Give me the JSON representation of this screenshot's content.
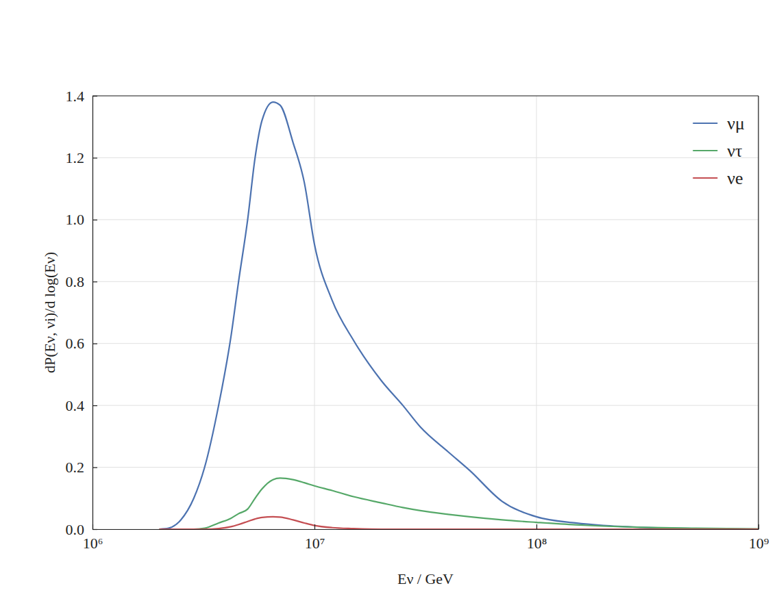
{
  "chart_data": {
    "type": "line",
    "x_label": "Eν / GeV",
    "y_label": "dP(Eν, νi)/d log(Eν)",
    "log": "x",
    "grid": true,
    "legend": "top-right",
    "xlim": [
      1000000,
      1000000000
    ],
    "xticks": [
      {
        "value": 1000000,
        "label": "10⁶"
      },
      {
        "value": 10000000,
        "label": "10⁷"
      },
      {
        "value": 100000000,
        "label": "10⁸"
      },
      {
        "value": 1000000000,
        "label": "10⁹"
      }
    ],
    "ylim": [
      0,
      1.4
    ],
    "yticks": [
      {
        "value": 0,
        "label": "0.0"
      },
      0.2,
      0.4,
      0.6,
      0.8,
      {
        "value": 1,
        "label": "1.0"
      },
      1.2,
      1.4
    ],
    "x": [
      2000000,
      2200000,
      2500000,
      2860000,
      3200000,
      3700000,
      4200000,
      4550000,
      5000000,
      5400000,
      5800000,
      6500000,
      7000000,
      8000000,
      9000000,
      10000000,
      12000000,
      15000000,
      20000000,
      25000000,
      30000000,
      40000000,
      50000000,
      70000000,
      100000000,
      150000000,
      200000000,
      300000000,
      500000000,
      1000000000
    ],
    "series": [
      {
        "name": "νμ",
        "color": "#4c72b0",
        "values": [
          0,
          0.003,
          0.03,
          0.1,
          0.2,
          0.4,
          0.62,
          0.8,
          1.0,
          1.2,
          1.32,
          1.38,
          1.37,
          1.25,
          1.12,
          0.92,
          0.74,
          0.61,
          0.48,
          0.4,
          0.33,
          0.25,
          0.19,
          0.09,
          0.04,
          0.02,
          0.012,
          0.006,
          0.002,
          0
        ]
      },
      {
        "name": "ντ",
        "color": "#55a868",
        "values": [
          0,
          0,
          0,
          0,
          0.003,
          0.02,
          0.035,
          0.05,
          0.065,
          0.1,
          0.13,
          0.16,
          0.165,
          0.16,
          0.15,
          0.14,
          0.125,
          0.105,
          0.085,
          0.07,
          0.06,
          0.048,
          0.04,
          0.03,
          0.022,
          0.014,
          0.01,
          0.006,
          0.003,
          0.001
        ]
      },
      {
        "name": "νe",
        "color": "#c44e52",
        "values": [
          0,
          0,
          0,
          0,
          0,
          0.002,
          0.008,
          0.015,
          0.025,
          0.033,
          0.038,
          0.04,
          0.039,
          0.03,
          0.02,
          0.012,
          0.005,
          0.002,
          0,
          0,
          0,
          0,
          0,
          0,
          0,
          0,
          0,
          0,
          0,
          0
        ]
      }
    ]
  }
}
